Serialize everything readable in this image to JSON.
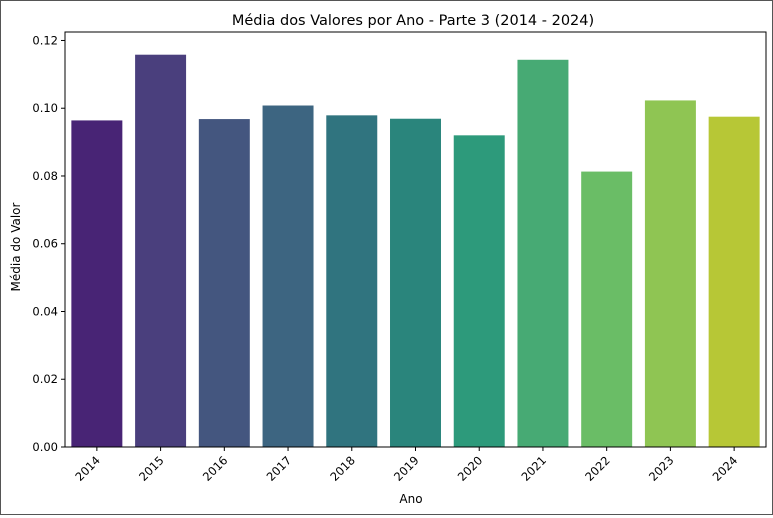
{
  "chart_data": {
    "type": "bar",
    "title": "Média dos Valores por Ano - Parte 3 (2014 - 2024)",
    "xlabel": "Ano",
    "ylabel": "Média do Valor",
    "categories": [
      "2014",
      "2015",
      "2016",
      "2017",
      "2018",
      "2019",
      "2020",
      "2021",
      "2022",
      "2023",
      "2024"
    ],
    "values": [
      0.0964,
      0.1158,
      0.0968,
      0.1008,
      0.0979,
      0.0969,
      0.092,
      0.1143,
      0.0813,
      0.1023,
      0.0975
    ],
    "colors": [
      "#482475",
      "#4a3f7d",
      "#44567f",
      "#3d6581",
      "#30747f",
      "#2a857c",
      "#2d9a7b",
      "#47aa74",
      "#6abd66",
      "#8fc553",
      "#b7c736"
    ],
    "ylim": [
      0,
      0.1225
    ],
    "yticks": [
      "0.00",
      "0.02",
      "0.04",
      "0.06",
      "0.08",
      "0.10",
      "0.12"
    ],
    "ytick_values": [
      0,
      0.02,
      0.04,
      0.06,
      0.08,
      0.1,
      0.12
    ],
    "grid": false,
    "legend": "none"
  }
}
